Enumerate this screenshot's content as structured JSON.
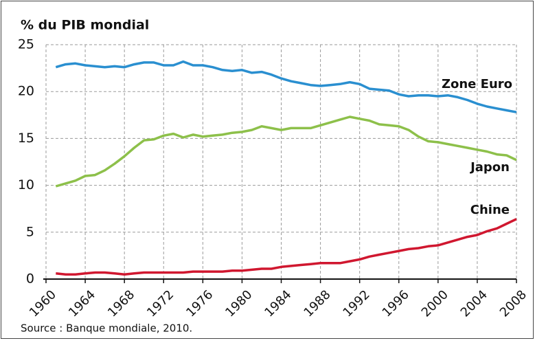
{
  "chart_data": {
    "type": "line",
    "title": "% du PIB mondial",
    "source": "Source : Banque mondiale, 2010.",
    "x": [
      1961,
      1962,
      1963,
      1964,
      1965,
      1966,
      1967,
      1968,
      1969,
      1970,
      1971,
      1972,
      1973,
      1974,
      1975,
      1976,
      1977,
      1978,
      1979,
      1980,
      1981,
      1982,
      1983,
      1984,
      1985,
      1986,
      1987,
      1988,
      1989,
      1990,
      1991,
      1992,
      1993,
      1994,
      1995,
      1996,
      1997,
      1998,
      1999,
      2000,
      2001,
      2002,
      2003,
      2004,
      2005,
      2006,
      2007,
      2008
    ],
    "series": [
      {
        "name": "Zone Euro",
        "color": "#2a8fd0",
        "values": [
          22.6,
          22.9,
          23.0,
          22.8,
          22.7,
          22.6,
          22.7,
          22.6,
          22.9,
          23.1,
          23.1,
          22.8,
          22.8,
          23.2,
          22.8,
          22.8,
          22.6,
          22.3,
          22.2,
          22.3,
          22.0,
          22.1,
          21.8,
          21.4,
          21.1,
          20.9,
          20.7,
          20.6,
          20.7,
          20.8,
          21.0,
          20.8,
          20.3,
          20.2,
          20.1,
          19.7,
          19.5,
          19.6,
          19.6,
          19.5,
          19.6,
          19.4,
          19.1,
          18.7,
          18.4,
          18.2,
          18.0,
          17.8
        ]
      },
      {
        "name": "Japon",
        "color": "#8dc04a",
        "values": [
          9.9,
          10.2,
          10.5,
          11.0,
          11.1,
          11.6,
          12.3,
          13.1,
          14.0,
          14.8,
          14.9,
          15.3,
          15.5,
          15.1,
          15.4,
          15.2,
          15.3,
          15.4,
          15.6,
          15.7,
          15.9,
          16.3,
          16.1,
          15.9,
          16.1,
          16.1,
          16.1,
          16.4,
          16.7,
          17.0,
          17.3,
          17.1,
          16.9,
          16.5,
          16.4,
          16.3,
          15.9,
          15.2,
          14.7,
          14.6,
          14.4,
          14.2,
          14.0,
          13.8,
          13.6,
          13.3,
          13.2,
          12.7
        ]
      },
      {
        "name": "Chine",
        "color": "#d0172f",
        "values": [
          0.6,
          0.5,
          0.5,
          0.6,
          0.7,
          0.7,
          0.6,
          0.5,
          0.6,
          0.7,
          0.7,
          0.7,
          0.7,
          0.7,
          0.8,
          0.8,
          0.8,
          0.8,
          0.9,
          0.9,
          1.0,
          1.1,
          1.1,
          1.3,
          1.4,
          1.5,
          1.6,
          1.7,
          1.7,
          1.7,
          1.9,
          2.1,
          2.4,
          2.6,
          2.8,
          3.0,
          3.2,
          3.3,
          3.5,
          3.6,
          3.9,
          4.2,
          4.5,
          4.7,
          5.1,
          5.4,
          5.9,
          6.4
        ]
      }
    ],
    "xlim": [
      1960,
      2008
    ],
    "xticks": [
      1960,
      1964,
      1968,
      1972,
      1976,
      1980,
      1984,
      1988,
      1992,
      1996,
      2000,
      2004,
      2008
    ],
    "ylim": [
      0,
      25
    ],
    "yticks": [
      0,
      5,
      10,
      15,
      20,
      25
    ],
    "grid": true
  }
}
